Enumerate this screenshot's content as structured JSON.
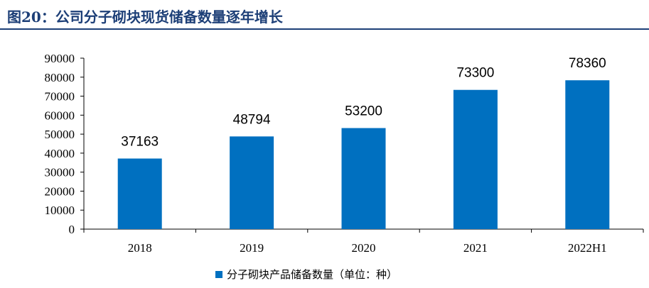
{
  "figure_title": "图20：公司分子砌块现货储备数量逐年增长",
  "chart_data": {
    "type": "bar",
    "categories": [
      "2018",
      "2019",
      "2020",
      "2021",
      "2022H1"
    ],
    "series": [
      {
        "name": "分子砌块产品储备数量（单位：种）",
        "values": [
          37163,
          48794,
          53200,
          73300,
          78360
        ],
        "color": "#0070c0"
      }
    ],
    "ylim": [
      0,
      90000
    ],
    "yticks": [
      "0",
      "10000",
      "20000",
      "30000",
      "40000",
      "50000",
      "60000",
      "70000",
      "80000",
      "90000"
    ],
    "grid": false,
    "legend_position": "bottom",
    "data_labels": [
      "37163",
      "48794",
      "53200",
      "73300",
      "78360"
    ]
  },
  "legend": {
    "label": "分子砌块产品储备数量（单位：种）"
  }
}
